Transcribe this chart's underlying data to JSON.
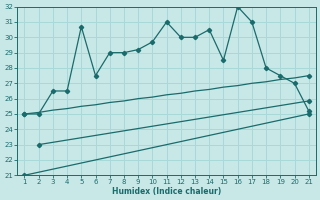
{
  "xlabel": "Humidex (Indice chaleur)",
  "x": [
    1,
    2,
    3,
    4,
    5,
    6,
    7,
    8,
    9,
    10,
    11,
    12,
    13,
    14,
    15,
    16,
    17,
    18,
    19,
    20,
    21
  ],
  "line_top": [
    25,
    25,
    26.5,
    26.5,
    30.7,
    27.5,
    29,
    29,
    29.2,
    29.7,
    31,
    30,
    30,
    30.5,
    28.5,
    32,
    31,
    28,
    27.5,
    27,
    25.2
  ],
  "color": "#1a6b6b",
  "bg_color": "#c8e8e8",
  "grid_color": "#a8d8d8",
  "ylim": [
    21,
    32
  ],
  "xlim": [
    1,
    21
  ],
  "yticks": [
    21,
    22,
    23,
    24,
    25,
    26,
    27,
    28,
    29,
    30,
    31,
    32
  ],
  "xticks": [
    1,
    2,
    3,
    4,
    5,
    6,
    7,
    8,
    9,
    10,
    11,
    12,
    13,
    14,
    15,
    16,
    17,
    18,
    19,
    20,
    21
  ],
  "marker": "D",
  "marker_size": 2.2,
  "linewidth": 0.9,
  "straight_upper_x": [
    1,
    2,
    3,
    4,
    5,
    6,
    7,
    8,
    9,
    10,
    11,
    12,
    13,
    14,
    15,
    16,
    17,
    18,
    19,
    20,
    21
  ],
  "straight_upper_y": [
    25.0,
    25.1,
    25.25,
    25.35,
    25.5,
    25.6,
    25.75,
    25.85,
    26.0,
    26.1,
    26.25,
    26.35,
    26.5,
    26.6,
    26.75,
    26.85,
    27.0,
    27.1,
    27.25,
    27.35,
    27.5
  ],
  "straight_mid_x": [
    2,
    3,
    4,
    5,
    6,
    7,
    8,
    9,
    10,
    11,
    12,
    13,
    14,
    15,
    16,
    17,
    18,
    19,
    20,
    21
  ],
  "straight_mid_y": [
    23.0,
    23.15,
    23.3,
    23.45,
    23.6,
    23.75,
    23.9,
    24.05,
    24.2,
    24.35,
    24.5,
    24.65,
    24.8,
    24.95,
    25.1,
    25.25,
    25.4,
    25.55,
    25.7,
    25.85
  ],
  "straight_low_x": [
    1,
    2,
    3,
    4,
    5,
    6,
    7,
    8,
    9,
    10,
    11,
    12,
    13,
    14,
    15,
    16,
    17,
    18,
    19,
    20,
    21
  ],
  "straight_low_y": [
    21.0,
    21.2,
    21.4,
    21.6,
    21.8,
    22.0,
    22.2,
    22.4,
    22.6,
    22.8,
    23.0,
    23.2,
    23.4,
    23.6,
    23.8,
    24.0,
    24.2,
    24.4,
    24.6,
    24.8,
    25.0
  ],
  "marker_top_indices": [
    0,
    1,
    2,
    3,
    4,
    5,
    6,
    7,
    8,
    9,
    10,
    11,
    12,
    13,
    14,
    15,
    16,
    17,
    18,
    19,
    20
  ],
  "marker_mid_indices": [
    0,
    19
  ],
  "marker_low_indices": [
    0,
    19,
    20
  ],
  "marker_upper_indices": [
    0,
    20
  ]
}
